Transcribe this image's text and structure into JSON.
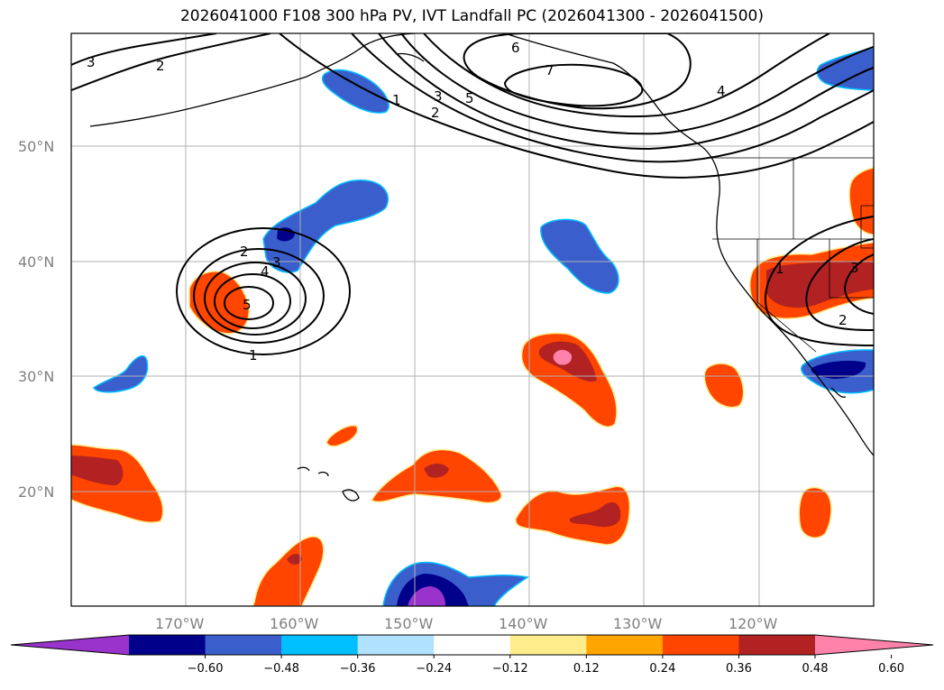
{
  "title": "2026041000 F108 300 hPa PV, IVT Landfall PC (2026041300 - 2026041500)",
  "lat_labels": [
    "50°N",
    "40°N",
    "30°N",
    "20°N"
  ],
  "lon_labels": [
    "170°W",
    "160°W",
    "150°W",
    "140°W",
    "130°W",
    "120°W"
  ],
  "colorbar": {
    "tick_labels": [
      "−0.60",
      "−0.48",
      "−0.36",
      "−0.24",
      "−0.12",
      "0.12",
      "0.24",
      "0.36",
      "0.48",
      "0.60"
    ],
    "colors": [
      "#9933cc",
      "#00008b",
      "#3a5fcd",
      "#00bfff",
      "#b0e2ff",
      "#ffffff",
      "#ffec8b",
      "#ffa500",
      "#ff4500",
      "#b22222",
      "#ff82ab"
    ]
  },
  "contour_labels": {
    "nw_3": "3",
    "nw_2": "2",
    "ridge_1": "1",
    "ridge_3": "3",
    "ridge_2": "2",
    "ridge_5": "5",
    "ridge_6": "6",
    "ridge_7": "7",
    "ridge_4": "4",
    "low_2": "2",
    "low_3": "3",
    "low_4": "4",
    "low_5": "5",
    "low_1": "1",
    "east_1": "1",
    "east_3": "3",
    "east_2": "2"
  }
}
